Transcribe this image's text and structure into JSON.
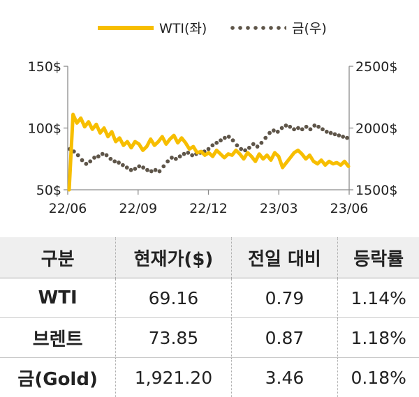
{
  "chart_data": {
    "type": "line",
    "x_ticks": [
      "22/06",
      "22/09",
      "22/12",
      "23/03",
      "23/06"
    ],
    "y_left_ticks": [
      "150$",
      "100$",
      "50$"
    ],
    "y_right_ticks": [
      "2500$",
      "2000$",
      "1500$"
    ],
    "y_left_range": [
      50,
      150
    ],
    "y_right_range": [
      1500,
      2500
    ],
    "series": [
      {
        "name": "WTI(좌)",
        "axis": "left",
        "color": "#f7be00",
        "style": "solid",
        "values": [
          50,
          111,
          104,
          108,
          101,
          105,
          99,
          103,
          96,
          100,
          93,
          97,
          89,
          92,
          86,
          89,
          84,
          89,
          87,
          82,
          85,
          91,
          86,
          89,
          93,
          87,
          91,
          94,
          88,
          92,
          88,
          83,
          85,
          80,
          81,
          78,
          80,
          77,
          82,
          79,
          76,
          79,
          78,
          82,
          79,
          75,
          80,
          77,
          73,
          79,
          75,
          78,
          74,
          80,
          77,
          68,
          72,
          76,
          80,
          82,
          79,
          75,
          78,
          73,
          71,
          74,
          70,
          73,
          71,
          72,
          70,
          73,
          69
        ]
      },
      {
        "name": "금(우)",
        "axis": "right",
        "color": "#5e5549",
        "style": "dotted",
        "values": [
          1830,
          1810,
          1780,
          1740,
          1710,
          1730,
          1760,
          1770,
          1790,
          1780,
          1750,
          1730,
          1720,
          1700,
          1680,
          1660,
          1670,
          1690,
          1680,
          1660,
          1650,
          1660,
          1650,
          1690,
          1730,
          1760,
          1750,
          1770,
          1790,
          1800,
          1780,
          1790,
          1800,
          1810,
          1830,
          1860,
          1880,
          1900,
          1920,
          1930,
          1900,
          1860,
          1830,
          1820,
          1840,
          1870,
          1850,
          1880,
          1920,
          1960,
          1980,
          1970,
          2000,
          2020,
          2010,
          1990,
          2000,
          1990,
          2010,
          1990,
          2020,
          2010,
          1990,
          1970,
          1960,
          1950,
          1940,
          1930,
          1920
        ]
      }
    ]
  },
  "table": {
    "headers": [
      "구분",
      "현재가($)",
      "전일 대비",
      "등락률"
    ],
    "rows": [
      [
        "WTI",
        "69.16",
        "0.79",
        "1.14%"
      ],
      [
        "브렌트",
        "73.85",
        "0.87",
        "1.18%"
      ],
      [
        "금(Gold)",
        "1,921.20",
        "3.46",
        "0.18%"
      ]
    ]
  }
}
